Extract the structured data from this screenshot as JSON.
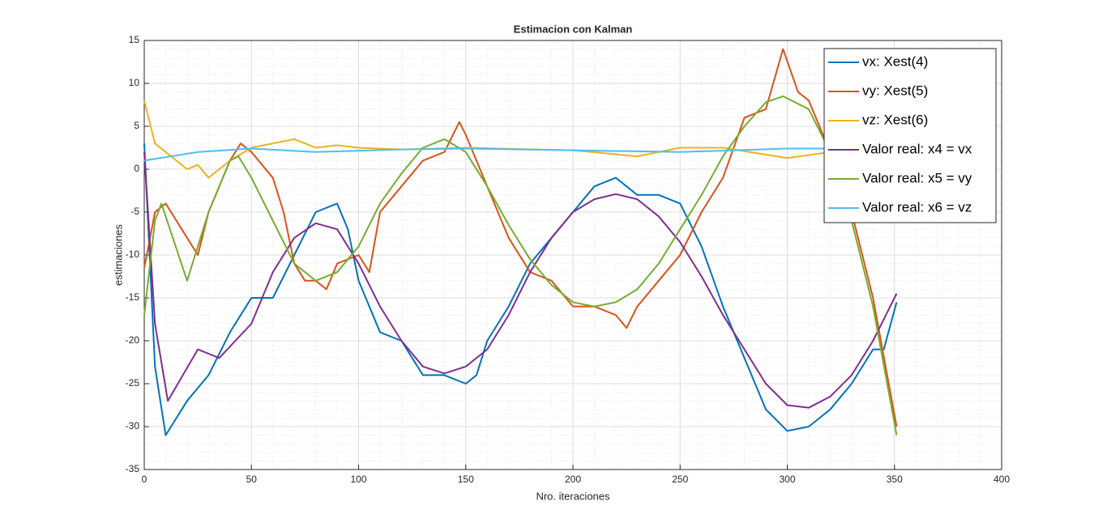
{
  "chart_data": {
    "type": "line",
    "title": "Estimacion con Kalman",
    "xlabel": "Nro. iteraciones",
    "ylabel": "estimaciones",
    "xlim": [
      0,
      400
    ],
    "xticks": [
      0,
      50,
      100,
      150,
      200,
      250,
      300,
      350,
      400
    ],
    "ylim": [
      -35,
      15
    ],
    "yticks": [
      -35,
      -30,
      -25,
      -20,
      -15,
      -10,
      -5,
      0,
      5,
      10,
      15
    ],
    "grid": true,
    "minor_grid": true,
    "legend": "northeast",
    "series": [
      {
        "name": "vx: Xest(4)",
        "color": "#0072bd",
        "x": [
          0,
          5,
          10,
          20,
          30,
          40,
          45,
          50,
          60,
          70,
          80,
          90,
          95,
          100,
          110,
          120,
          130,
          140,
          150,
          155,
          160,
          170,
          180,
          190,
          200,
          210,
          220,
          230,
          240,
          250,
          260,
          270,
          280,
          290,
          300,
          310,
          320,
          330,
          340,
          345,
          351
        ],
        "values": [
          3,
          -23,
          -31,
          -27,
          -24,
          -19,
          -17,
          -15,
          -15,
          -10,
          -5,
          -4,
          -7,
          -13,
          -19,
          -20,
          -24,
          -24,
          -25,
          -24,
          -20,
          -16,
          -11,
          -8,
          -5,
          -2,
          -1,
          -3,
          -3,
          -4,
          -9,
          -16,
          -22,
          -28,
          -30.5,
          -30,
          -28,
          -25,
          -21,
          -21,
          -15.5
        ]
      },
      {
        "name": "vy: Xest(5)",
        "color": "#d95319",
        "x": [
          0,
          5,
          10,
          20,
          25,
          30,
          35,
          40,
          45,
          50,
          60,
          65,
          70,
          75,
          80,
          85,
          90,
          100,
          105,
          110,
          120,
          130,
          140,
          147,
          150,
          160,
          170,
          180,
          190,
          200,
          210,
          220,
          225,
          230,
          240,
          250,
          260,
          270,
          280,
          290,
          298,
          305,
          310,
          320,
          330,
          340,
          351
        ],
        "values": [
          -11.5,
          -5,
          -4,
          -8,
          -10,
          -5,
          -2,
          1,
          3,
          2,
          -1,
          -5,
          -11,
          -13,
          -13,
          -14,
          -11,
          -10,
          -12,
          -5,
          -2,
          1,
          2,
          5.5,
          4,
          -2,
          -8,
          -12,
          -13,
          -16,
          -16,
          -17,
          -18.5,
          -16,
          -13,
          -10,
          -5,
          -1,
          6,
          7,
          14,
          9,
          8,
          2,
          -5,
          -15,
          -30
        ]
      },
      {
        "name": "vz: Xest(6)",
        "color": "#edb120",
        "x": [
          0,
          5,
          10,
          15,
          20,
          25,
          30,
          35,
          40,
          50,
          60,
          70,
          80,
          90,
          100,
          120,
          150,
          200,
          230,
          250,
          270,
          290,
          300,
          320
        ],
        "values": [
          8,
          3,
          2,
          1,
          0,
          0.5,
          -1,
          0,
          1,
          2.5,
          3,
          3.5,
          2.5,
          2.8,
          2.5,
          2.3,
          2.5,
          2.2,
          1.5,
          2.5,
          2.5,
          1.7,
          1.3,
          2
        ]
      },
      {
        "name": "Valor real: x4 = vx",
        "color": "#7e2f8e",
        "x": [
          0,
          5,
          11,
          25,
          35,
          50,
          60,
          70,
          80,
          90,
          100,
          110,
          120,
          130,
          140,
          150,
          160,
          170,
          180,
          190,
          200,
          210,
          220,
          230,
          240,
          250,
          260,
          270,
          280,
          290,
          300,
          310,
          320,
          330,
          340,
          351
        ],
        "values": [
          2,
          -18,
          -27,
          -21,
          -22,
          -18,
          -12,
          -8,
          -6.3,
          -7,
          -11,
          -16,
          -20,
          -23,
          -23.8,
          -23,
          -21,
          -17,
          -12,
          -8,
          -5,
          -3.5,
          -2.9,
          -3.5,
          -5.5,
          -8.5,
          -12.5,
          -17,
          -21,
          -25,
          -27.5,
          -27.8,
          -26.5,
          -24,
          -20,
          -14.5
        ]
      },
      {
        "name": "Valor real: x5 = vy",
        "color": "#77ac30",
        "x": [
          0,
          5,
          8,
          20,
          30,
          40,
          44,
          50,
          60,
          70,
          80,
          90,
          100,
          110,
          120,
          130,
          140,
          150,
          160,
          170,
          180,
          190,
          200,
          210,
          220,
          230,
          240,
          250,
          260,
          270,
          280,
          290,
          298,
          310,
          320,
          330,
          340,
          351
        ],
        "values": [
          -17,
          -6,
          -4,
          -13,
          -5,
          1,
          1.5,
          -1,
          -6,
          -11,
          -13,
          -12,
          -9,
          -4,
          -0.5,
          2.5,
          3.5,
          2,
          -2,
          -6.5,
          -10.5,
          -13.5,
          -15.5,
          -16,
          -15.5,
          -14,
          -11,
          -7,
          -3,
          1.5,
          5,
          7.8,
          8.5,
          7,
          2,
          -6,
          -16,
          -31
        ]
      },
      {
        "name": "Valor real: x6 = vz",
        "color": "#4dbeee",
        "x": [
          0,
          25,
          50,
          80,
          120,
          150,
          200,
          250,
          300,
          350
        ],
        "values": [
          1,
          2,
          2.4,
          2,
          2.3,
          2.4,
          2.2,
          2,
          2.4,
          2.4
        ]
      }
    ]
  }
}
